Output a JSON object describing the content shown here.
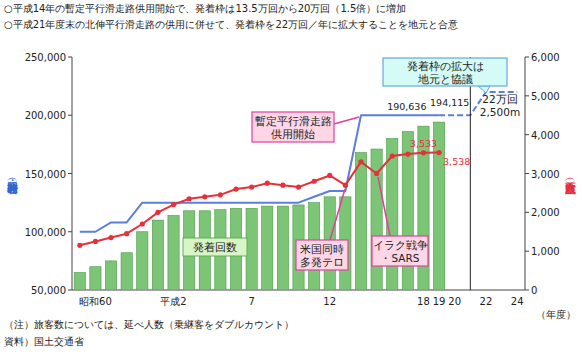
{
  "chart_data": {
    "type": "bar",
    "notes": [
      "○平成14年の暫定平行滑走路供用開始で、発着枠は13.5万回から20万回（1.5倍）に増加",
      "○平成21年度末の北伸平行滑走路の供用に併せて、発着枠を22万回／年に拡大することを地元と合意"
    ],
    "footnotes": [
      "（注）旅客数については、延べ人数（乗継客をダブルカウント）",
      "資料）国土交通省"
    ],
    "x_label": "（年度）",
    "y_label": "発着枠・発着回数（回）",
    "y2_label": "航空旅客数（万人）",
    "categories": [
      null,
      "昭和60",
      null,
      null,
      null,
      null,
      "平成2",
      null,
      null,
      null,
      null,
      "7",
      null,
      null,
      null,
      null,
      "12",
      null,
      null,
      null,
      null,
      null,
      "18",
      "19",
      "20",
      null,
      "22",
      null,
      "24"
    ],
    "ylim": [
      50000,
      250000
    ],
    "yticks": [
      {
        "value": 50000,
        "label": "50,000"
      },
      {
        "value": 100000,
        "label": "100,000"
      },
      {
        "value": 150000,
        "label": "150,000"
      },
      {
        "value": 200000,
        "label": "200,000"
      },
      {
        "value": 250000,
        "label": "250,000"
      }
    ],
    "y2lim": [
      0,
      6000
    ],
    "y2ticks": [
      0,
      {
        "value": 1000,
        "label": "1,000"
      },
      {
        "value": 2000,
        "label": "2,000"
      },
      {
        "value": 3000,
        "label": "3,000"
      },
      {
        "value": 4000,
        "label": "4,000"
      },
      {
        "value": 5000,
        "label": "5,000"
      },
      {
        "value": 6000,
        "label": "6,000"
      }
    ],
    "grid": false,
    "series": [
      {
        "name": "発着回数",
        "type": "bar",
        "color": "#7cc576",
        "data_labels": true,
        "values": [
          65000,
          70000,
          75000,
          82000,
          100000,
          110000,
          114000,
          118000,
          118000,
          119000,
          120000,
          120000,
          122000,
          122000,
          123000,
          125000,
          130000,
          130000,
          168000,
          171000,
          180000,
          186000,
          190636,
          194115,
          null,
          null,
          null,
          null,
          null
        ],
        "value_labels": [
          null,
          null,
          null,
          null,
          null,
          null,
          null,
          null,
          null,
          null,
          null,
          null,
          null,
          null,
          null,
          null,
          null,
          null,
          null,
          null,
          null,
          null,
          "190,636",
          "194,115",
          null,
          null,
          null,
          null,
          null
        ]
      },
      {
        "type": "line",
        "color": "#5b7fe0",
        "line_style": "solid",
        "values": [
          100000,
          100000,
          108000,
          108000,
          125000,
          125000,
          125000,
          125000,
          125000,
          125000,
          125000,
          125000,
          125000,
          125000,
          125000,
          130000,
          135000,
          135000,
          200000,
          200000,
          200000,
          200000,
          200000,
          200000,
          null,
          null,
          null,
          null,
          null
        ]
      },
      {
        "type": "line",
        "color": "#5b7fe0",
        "line_style": "dashed",
        "values": [
          null,
          null,
          null,
          null,
          null,
          null,
          null,
          null,
          null,
          null,
          null,
          null,
          null,
          null,
          null,
          null,
          null,
          null,
          null,
          null,
          null,
          null,
          null,
          200000,
          200000,
          200000,
          220000,
          220000,
          220000
        ]
      },
      {
        "type": "line",
        "axis": "y2",
        "color": "#e8303a",
        "marker": "circle",
        "line_style": "solid",
        "data_labels": true,
        "values": [
          1150,
          1250,
          1350,
          1450,
          1700,
          2000,
          2200,
          2350,
          2400,
          2450,
          2600,
          2650,
          2750,
          2700,
          2650,
          2800,
          2950,
          2700,
          3300,
          3000,
          3450,
          3500,
          3533,
          3538,
          null,
          null,
          null,
          null,
          null
        ],
        "value_labels": [
          null,
          null,
          null,
          null,
          null,
          null,
          null,
          null,
          null,
          null,
          null,
          null,
          null,
          null,
          null,
          null,
          null,
          null,
          null,
          null,
          null,
          null,
          "3,533",
          "3,538",
          null,
          null,
          null,
          null,
          null
        ]
      }
    ],
    "annotations": [
      {
        "lines": [
          "発着枠の拡大は",
          "地元と協議"
        ]
      },
      {
        "lines": [
          "暫定平行滑走路",
          "供用開始"
        ]
      },
      {
        "lines": [
          "米国同時",
          "多発テロ"
        ]
      },
      {
        "lines": [
          "イラク戦争",
          "・SARS"
        ]
      },
      {
        "lines": [
          "22万回",
          "2,500m"
        ]
      }
    ]
  }
}
